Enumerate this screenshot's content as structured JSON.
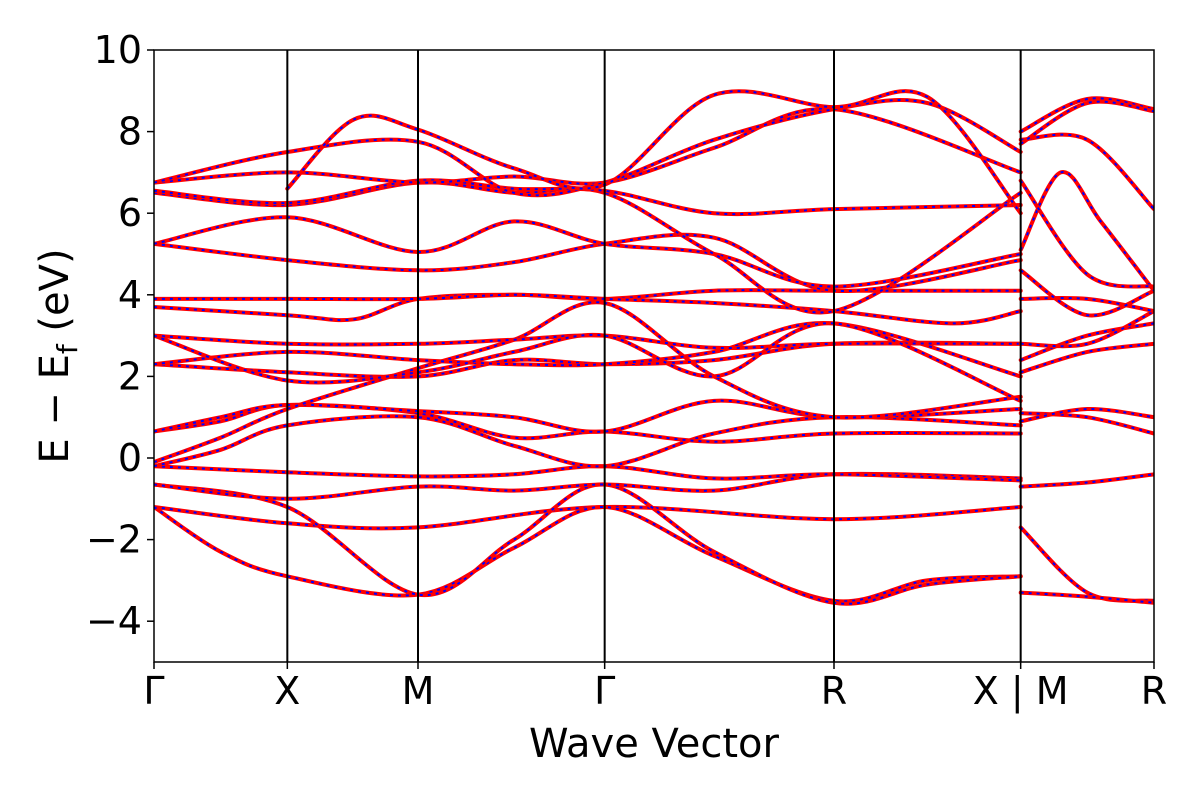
{
  "chart_data": {
    "type": "line",
    "title": "",
    "xlabel": "Wave Vector",
    "ylabel_main": "E − E",
    "ylabel_sub": "f",
    "ylabel_tail": " (eV)",
    "ylim": [
      -5,
      10
    ],
    "yticks": [
      -4,
      -2,
      0,
      2,
      4,
      6,
      8,
      10
    ],
    "ytick_labels": [
      "−4",
      "−2",
      "0",
      "2",
      "4",
      "6",
      "8",
      "10"
    ],
    "xlim": [
      0,
      7.5
    ],
    "kpoints": [
      {
        "x": 0.0,
        "label": "Γ"
      },
      {
        "x": 1.0,
        "label": "X"
      },
      {
        "x": 1.98,
        "label": "M"
      },
      {
        "x": 3.38,
        "label": "Γ"
      },
      {
        "x": 5.1,
        "label": "R"
      },
      {
        "x": 6.5,
        "label": "X | M"
      },
      {
        "x": 7.5,
        "label": "R"
      }
    ],
    "grid": false,
    "legend": "none",
    "colors": {
      "band_primary": "#ff0000",
      "band_secondary": "#0000ff"
    },
    "segment_breaks": [
      6.5
    ],
    "series": [
      {
        "x": [
          0,
          1.0,
          1.98,
          3.38,
          5.1,
          6.5
        ],
        "y": [
          -1.2,
          -1.6,
          -1.7,
          -1.2,
          -1.5,
          -1.2
        ]
      },
      {
        "x": [
          0,
          0.5,
          1.0,
          1.98,
          2.7,
          3.38,
          4.2,
          5.1,
          5.8,
          6.5
        ],
        "y": [
          -1.2,
          -2.3,
          -2.9,
          -3.35,
          -2.2,
          -1.2,
          -2.4,
          -3.5,
          -3.0,
          -2.9
        ]
      },
      {
        "x": [
          0,
          1.0,
          1.98,
          2.7,
          3.38,
          4.2,
          5.1,
          5.8,
          6.5
        ],
        "y": [
          -0.65,
          -1.2,
          -3.35,
          -2.0,
          -0.65,
          -2.3,
          -3.55,
          -3.1,
          -2.9
        ]
      },
      {
        "x": [
          0,
          1.0,
          1.98,
          2.7,
          3.38,
          4.2,
          5.1,
          6.5
        ],
        "y": [
          -0.65,
          -1.0,
          -0.7,
          -0.8,
          -0.65,
          -0.8,
          -0.4,
          -0.5
        ]
      },
      {
        "x": [
          0,
          1.0,
          1.98,
          2.7,
          3.38,
          4.2,
          5.1,
          6.5
        ],
        "y": [
          -0.2,
          -0.35,
          -0.45,
          -0.4,
          -0.2,
          -0.5,
          -0.4,
          -0.55
        ]
      },
      {
        "x": [
          0,
          0.5,
          1.0,
          1.98,
          2.7,
          3.38,
          4.2,
          5.1,
          6.5
        ],
        "y": [
          -0.2,
          0.2,
          0.8,
          1.0,
          0.3,
          -0.2,
          0.6,
          1.0,
          0.8
        ]
      },
      {
        "x": [
          0,
          0.5,
          1.0,
          1.98,
          2.7,
          3.38,
          4.2,
          5.1,
          6.5
        ],
        "y": [
          0.65,
          0.9,
          1.3,
          1.1,
          0.5,
          0.65,
          0.4,
          0.6,
          0.6
        ]
      },
      {
        "x": [
          0,
          0.5,
          1.0,
          1.98,
          2.7,
          3.38,
          4.2,
          5.1,
          6.5
        ],
        "y": [
          0.65,
          1.0,
          1.3,
          1.15,
          1.0,
          0.65,
          1.4,
          1.0,
          1.2
        ]
      },
      {
        "x": [
          0,
          0.5,
          1.0,
          1.98,
          2.7,
          3.38,
          4.2,
          5.1,
          6.5
        ],
        "y": [
          -0.1,
          0.5,
          1.2,
          2.2,
          2.9,
          3.8,
          2.0,
          1.0,
          1.5
        ]
      },
      {
        "x": [
          0,
          1.0,
          1.98,
          2.7,
          3.38,
          4.2,
          5.1,
          6.5
        ],
        "y": [
          2.3,
          2.1,
          2.0,
          2.4,
          2.3,
          2.4,
          2.8,
          2.8
        ]
      },
      {
        "x": [
          0,
          1.0,
          1.98,
          2.7,
          3.38,
          4.2,
          5.1,
          6.5
        ],
        "y": [
          2.3,
          2.6,
          2.4,
          2.3,
          2.3,
          2.6,
          3.3,
          2.0
        ]
      },
      {
        "x": [
          0,
          1.0,
          1.98,
          2.7,
          3.38,
          4.2,
          5.1,
          6.5
        ],
        "y": [
          3.0,
          2.8,
          2.8,
          2.9,
          3.0,
          2.7,
          2.8,
          2.8
        ]
      },
      {
        "x": [
          0,
          1.0,
          1.98,
          2.7,
          3.38,
          4.2,
          5.1,
          6.5
        ],
        "y": [
          3.0,
          1.9,
          2.1,
          2.6,
          3.0,
          2.0,
          3.3,
          1.4
        ]
      },
      {
        "x": [
          0,
          1.0,
          1.5,
          1.98,
          2.7,
          3.38,
          4.2,
          5.1,
          6.5
        ],
        "y": [
          3.7,
          3.5,
          3.4,
          3.9,
          4.0,
          3.9,
          4.1,
          4.1,
          4.1
        ]
      },
      {
        "x": [
          0,
          1.0,
          1.98,
          2.7,
          3.38,
          4.2,
          5.1,
          6.0,
          6.5
        ],
        "y": [
          3.9,
          3.9,
          3.9,
          4.0,
          3.9,
          3.8,
          3.6,
          3.3,
          3.6
        ]
      },
      {
        "x": [
          0,
          1.0,
          1.98,
          2.7,
          3.38,
          4.2,
          5.1,
          6.5
        ],
        "y": [
          5.25,
          4.85,
          4.6,
          4.8,
          5.25,
          5.4,
          4.1,
          4.85
        ]
      },
      {
        "x": [
          0,
          1.0,
          1.98,
          2.7,
          3.38,
          4.2,
          5.1,
          6.5
        ],
        "y": [
          5.25,
          5.9,
          5.05,
          5.8,
          5.25,
          5.0,
          4.2,
          5.0
        ]
      },
      {
        "x": [
          0,
          1.0,
          1.98,
          2.7,
          3.38,
          4.2,
          5.1,
          6.5
        ],
        "y": [
          6.5,
          6.2,
          6.75,
          6.5,
          6.5,
          5.0,
          3.6,
          6.5
        ]
      },
      {
        "x": [
          0,
          1.0,
          1.98,
          2.7,
          3.38,
          4.2,
          5.1,
          6.5
        ],
        "y": [
          6.55,
          6.25,
          6.8,
          6.6,
          6.55,
          6.0,
          6.1,
          6.2
        ]
      },
      {
        "x": [
          0,
          1.0,
          1.98,
          2.7,
          3.38,
          4.2,
          5.1,
          6.5
        ],
        "y": [
          6.75,
          7.0,
          6.75,
          6.9,
          6.75,
          7.6,
          8.55,
          7.0
        ]
      },
      {
        "x": [
          0,
          1.0,
          1.98,
          2.7,
          3.38,
          4.2,
          5.1,
          5.8,
          6.5
        ],
        "y": [
          6.75,
          7.5,
          7.75,
          6.5,
          6.75,
          7.8,
          8.55,
          8.7,
          7.5
        ]
      },
      {
        "x": [
          1.0,
          1.5,
          1.98,
          2.7,
          3.38,
          4.2,
          5.1,
          5.8,
          6.5
        ],
        "y": [
          6.6,
          8.3,
          8.05,
          7.1,
          6.7,
          8.9,
          8.6,
          8.85,
          6.0
        ]
      },
      {
        "x": [
          6.5,
          7.0,
          7.5
        ],
        "y": [
          -0.7,
          -0.6,
          -0.4
        ]
      },
      {
        "x": [
          6.5,
          7.0,
          7.5
        ],
        "y": [
          -1.7,
          -3.3,
          -3.5
        ]
      },
      {
        "x": [
          6.5,
          7.0,
          7.5
        ],
        "y": [
          -3.3,
          -3.4,
          -3.55
        ]
      },
      {
        "x": [
          6.5,
          7.0,
          7.5
        ],
        "y": [
          1.1,
          1.0,
          0.6
        ]
      },
      {
        "x": [
          6.5,
          7.0,
          7.5
        ],
        "y": [
          0.9,
          1.2,
          1.0
        ]
      },
      {
        "x": [
          6.5,
          7.0,
          7.5
        ],
        "y": [
          2.1,
          2.6,
          2.8
        ]
      },
      {
        "x": [
          6.5,
          7.0,
          7.5
        ],
        "y": [
          2.4,
          3.0,
          3.3
        ]
      },
      {
        "x": [
          6.5,
          7.0,
          7.5
        ],
        "y": [
          2.8,
          2.8,
          3.6
        ]
      },
      {
        "x": [
          6.5,
          7.0,
          7.5
        ],
        "y": [
          3.9,
          3.9,
          3.6
        ]
      },
      {
        "x": [
          6.5,
          7.0,
          7.5
        ],
        "y": [
          4.6,
          3.5,
          4.1
        ]
      },
      {
        "x": [
          6.5,
          6.8,
          7.1,
          7.5
        ],
        "y": [
          5.1,
          7.0,
          5.8,
          4.1
        ]
      },
      {
        "x": [
          6.5,
          7.0,
          7.5
        ],
        "y": [
          6.8,
          4.5,
          4.2
        ]
      },
      {
        "x": [
          6.5,
          7.0,
          7.5
        ],
        "y": [
          7.8,
          7.8,
          6.1
        ]
      },
      {
        "x": [
          6.5,
          7.0,
          7.5
        ],
        "y": [
          8.0,
          8.8,
          8.55
        ]
      },
      {
        "x": [
          6.5,
          7.0,
          7.5
        ],
        "y": [
          7.7,
          8.7,
          8.5
        ]
      }
    ]
  }
}
